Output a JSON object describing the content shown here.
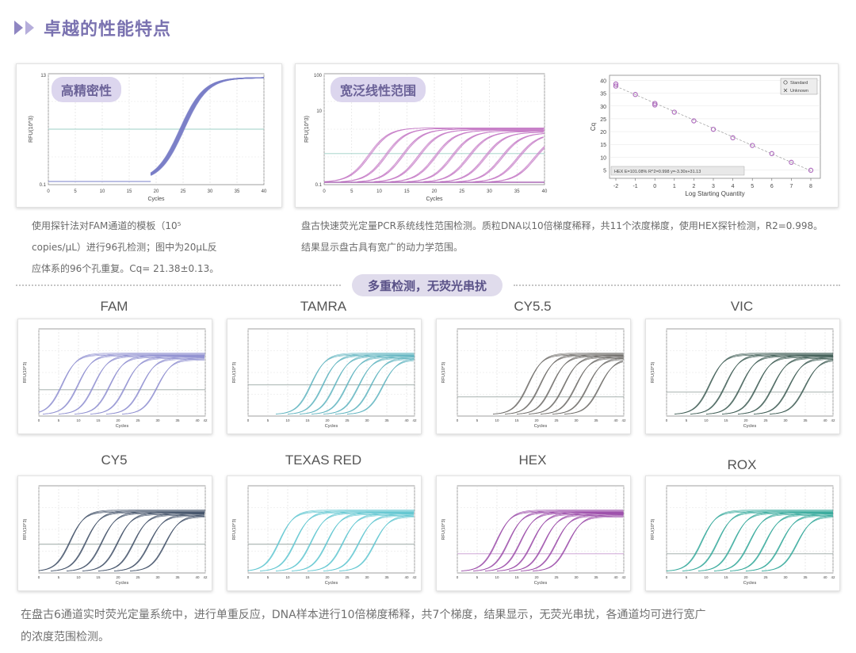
{
  "header": {
    "title": "卓越的性能特点"
  },
  "top_left": {
    "tag": "高精密性",
    "caption_lines": [
      "使用探针法对FAM通道的模板（10⁵",
      "copies/μL）进行96孔检测；图中为20μL反",
      "应体系的96个孔重复。Cq= 21.38±0.13。"
    ]
  },
  "top_right": {
    "tag": "宽泛线性范围",
    "caption_lines": [
      "盘古快速荧光定量PCR系统线性范围检测。质粒DNA以10倍梯度稀释，共11个浓度梯度，使用HEX探针检测，R2=0.998。",
      "结果显示盘古具有宽广的动力学范围。"
    ]
  },
  "divider_label": "多重检测，无荧光串扰",
  "footer_lines": [
    "在盘古6通道实时荧光定量系统中，进行单重反应，DNA样本进行10倍梯度稀释，共7个梯度，结果显示，无荧光串扰，各通道均可进行宽广",
    "的浓度范围检测。"
  ],
  "colors": {
    "accent": "#7a72b0",
    "tag_bg": "#dcd6ee",
    "threshold": "#9ccfc5"
  },
  "chart_data": [
    {
      "type": "line",
      "id": "precision",
      "xlabel": "Cycles",
      "ylabel": "RFU(10^3)",
      "x_ticks": [
        0,
        5,
        10,
        15,
        20,
        25,
        30,
        35,
        40
      ],
      "y_ticks": [
        "0.1",
        "13"
      ],
      "xlim": [
        0,
        40
      ],
      "series": [
        {
          "x0": 20.5,
          "count": 96,
          "color": "#7a7fc8"
        }
      ],
      "threshold": 0.55
    },
    {
      "type": "line",
      "id": "linear-range",
      "xlabel": "Cycles",
      "ylabel": "RFU(10^3)",
      "x_ticks": [
        0,
        5,
        10,
        15,
        20,
        25,
        30,
        35,
        40
      ],
      "y_ticks": [
        "0.1",
        "10",
        "100"
      ],
      "xlim": [
        0,
        40
      ],
      "series": [
        {
          "x0_list": [
            8,
            11,
            14,
            17,
            20,
            23,
            26,
            29,
            32,
            35,
            38
          ],
          "color": "#c77fc8"
        }
      ],
      "threshold": 0.5
    },
    {
      "type": "scatter",
      "id": "standard-curve",
      "xlabel": "Log Starting Quantity",
      "ylabel": "Cq",
      "xlim": [
        -2,
        8
      ],
      "ylim": [
        5,
        40
      ],
      "x_ticks": [
        -2,
        -1,
        0,
        1,
        2,
        3,
        4,
        5,
        6,
        7,
        8
      ],
      "y_ticks": [
        5,
        10,
        15,
        20,
        25,
        30,
        35,
        40
      ],
      "legend": [
        "Standard",
        "Unknown"
      ],
      "annotation": "HEX E=101.08% R^2=0.998 y=-3.30x+31.13",
      "points": [
        {
          "x": -2,
          "y": 37.8
        },
        {
          "x": -2,
          "y": 38.6
        },
        {
          "x": -1,
          "y": 34.5
        },
        {
          "x": 0,
          "y": 31.0
        },
        {
          "x": 0,
          "y": 30.4
        },
        {
          "x": 1,
          "y": 27.6
        },
        {
          "x": 2,
          "y": 24.2
        },
        {
          "x": 3,
          "y": 20.9
        },
        {
          "x": 4,
          "y": 17.6
        },
        {
          "x": 5,
          "y": 14.6
        },
        {
          "x": 6,
          "y": 11.4
        },
        {
          "x": 7,
          "y": 8.0
        },
        {
          "x": 8,
          "y": 4.9
        }
      ],
      "point_color": "#b06fbf"
    },
    {
      "type": "line",
      "id": "FAM",
      "title": "FAM",
      "xlabel": "Cycles",
      "ylabel": "RFU(10^3)",
      "x_ticks": [
        0,
        5,
        10,
        15,
        20,
        25,
        30,
        35,
        40,
        42
      ],
      "xlim": [
        0,
        42
      ],
      "x0_list": [
        6,
        10,
        14,
        18,
        22,
        26,
        30
      ],
      "color": "#8e8ed0",
      "threshold": 0.45
    },
    {
      "type": "line",
      "id": "TAMRA",
      "title": "TAMRA",
      "xlabel": "Cycles",
      "ylabel": "RFU(10^3)",
      "x_ticks": [
        0,
        5,
        10,
        15,
        20,
        25,
        30,
        35,
        40,
        42
      ],
      "xlim": [
        0,
        42
      ],
      "x0_list": [
        16,
        19,
        22,
        25,
        28,
        31,
        34
      ],
      "color": "#5fb4c0",
      "threshold": 0.55
    },
    {
      "type": "line",
      "id": "CY5.5",
      "title": "CY5.5",
      "xlabel": "Cycles",
      "ylabel": "RFU(10^3)",
      "x_ticks": [
        0,
        5,
        10,
        15,
        20,
        25,
        30,
        35,
        40,
        42
      ],
      "xlim": [
        0,
        42
      ],
      "x0_list": [
        18,
        21,
        24,
        27,
        30,
        33,
        36
      ],
      "color": "#6c6a66",
      "threshold": 0.3
    },
    {
      "type": "line",
      "id": "VIC",
      "title": "VIC",
      "xlabel": "Cycles",
      "ylabel": "RFU(10^3)",
      "x_ticks": [
        0,
        5,
        10,
        15,
        20,
        25,
        30,
        35,
        40,
        42
      ],
      "xlim": [
        0,
        42
      ],
      "x0_list": [
        11,
        15,
        19,
        23,
        27,
        31,
        35
      ],
      "color": "#3c5a52",
      "threshold": 0.4
    },
    {
      "type": "line",
      "id": "CY5",
      "title": "CY5",
      "xlabel": "Cycles",
      "ylabel": "RFU(10^3)",
      "x_ticks": [
        0,
        5,
        10,
        15,
        20,
        25,
        30,
        35,
        40,
        42
      ],
      "xlim": [
        0,
        42
      ],
      "x0_list": [
        8,
        12,
        16,
        20,
        24,
        28,
        32
      ],
      "color": "#3f4f66",
      "threshold": 0.5
    },
    {
      "type": "line",
      "id": "TEXAS RED",
      "title": "TEXAS RED",
      "xlabel": "Cycles",
      "ylabel": "RFU(10^3)",
      "x_ticks": [
        0,
        5,
        10,
        15,
        20,
        25,
        30,
        35,
        40,
        42
      ],
      "xlim": [
        0,
        42
      ],
      "x0_list": [
        8,
        12,
        16,
        20,
        24,
        28,
        32
      ],
      "color": "#5ec5d0",
      "threshold": 0.5
    },
    {
      "type": "line",
      "id": "HEX",
      "title": "HEX",
      "xlabel": "Cycles",
      "ylabel": "RFU(10^3)",
      "x_ticks": [
        0,
        5,
        10,
        15,
        20,
        25,
        30,
        35,
        40,
        42
      ],
      "xlim": [
        0,
        42
      ],
      "x0_list": [
        10,
        13,
        16,
        19,
        22,
        25,
        28
      ],
      "color": "#9a4aa8",
      "threshold": 0.3
    },
    {
      "type": "line",
      "id": "ROX",
      "title": "ROX",
      "xlabel": "Cycles",
      "ylabel": "RFU(10^3)",
      "x_ticks": [
        0,
        5,
        10,
        15,
        20,
        25,
        30,
        35,
        40,
        42
      ],
      "xlim": [
        0,
        42
      ],
      "x0_list": [
        9,
        13,
        17,
        21,
        25,
        29,
        33
      ],
      "color": "#33a89a",
      "threshold": 0.3
    }
  ]
}
